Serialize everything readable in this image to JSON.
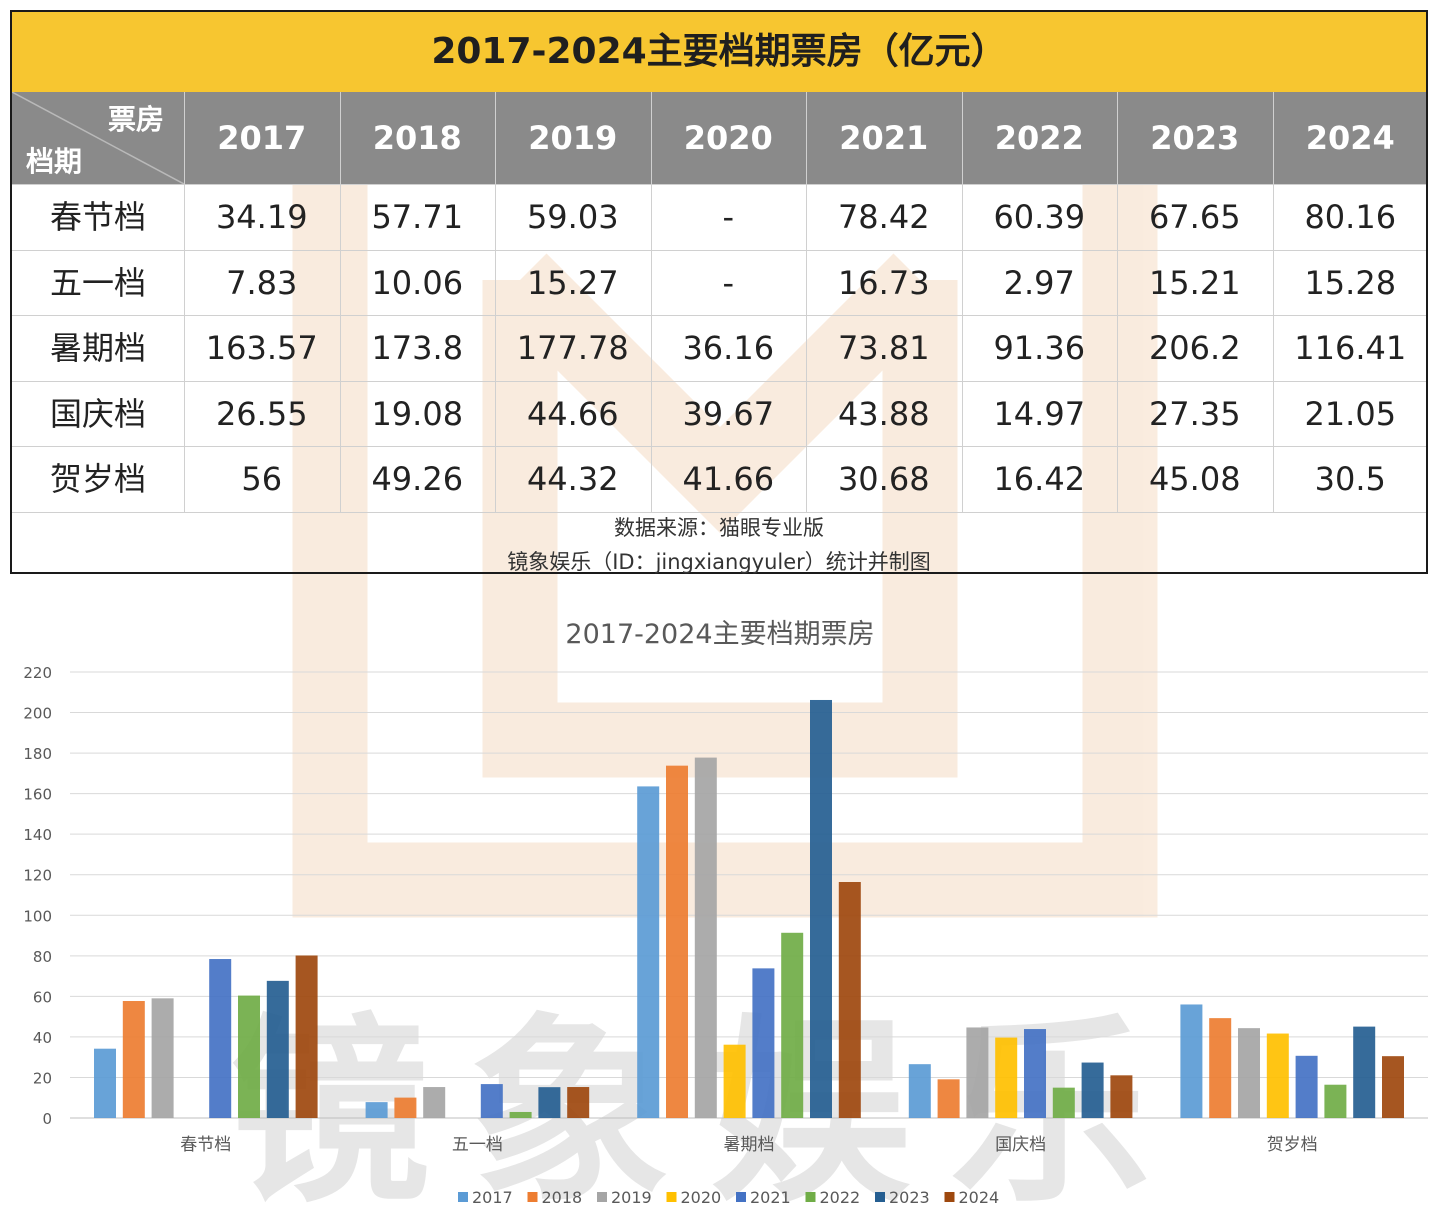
{
  "table": {
    "title": "2017-2024主要档期票房（亿元）",
    "corner_top": "票房",
    "corner_bottom": "档期",
    "years": [
      "2017",
      "2018",
      "2019",
      "2020",
      "2021",
      "2022",
      "2023",
      "2024"
    ],
    "rows": [
      {
        "label": "春节档",
        "values": [
          "34.19",
          "57.71",
          "59.03",
          "-",
          "78.42",
          "60.39",
          "67.65",
          "80.16"
        ]
      },
      {
        "label": "五一档",
        "values": [
          "7.83",
          "10.06",
          "15.27",
          "-",
          "16.73",
          "2.97",
          "15.21",
          "15.28"
        ]
      },
      {
        "label": "暑期档",
        "values": [
          "163.57",
          "173.8",
          "177.78",
          "36.16",
          "73.81",
          "91.36",
          "206.2",
          "116.41"
        ]
      },
      {
        "label": "国庆档",
        "values": [
          "26.55",
          "19.08",
          "44.66",
          "39.67",
          "43.88",
          "14.97",
          "27.35",
          "21.05"
        ]
      },
      {
        "label": "贺岁档",
        "values": [
          "56",
          "49.26",
          "44.32",
          "41.66",
          "30.68",
          "16.42",
          "45.08",
          "30.5"
        ]
      }
    ],
    "source_line1": "数据来源：猫眼专业版",
    "source_line2": "镜象娱乐（ID：jingxiangyuler）统计并制图"
  },
  "watermark": {
    "text": "镜象娱乐"
  },
  "colors": {
    "title_bg": "#f7c630",
    "header_bg": "#8a8a8a",
    "series": [
      "#5b9bd5",
      "#ed7d31",
      "#a5a5a5",
      "#ffc000",
      "#4472c4",
      "#70ad47",
      "#255e91",
      "#9e480e"
    ]
  },
  "chart_data": {
    "type": "bar",
    "title": "2017-2024主要档期票房",
    "categories": [
      "春节档",
      "五一档",
      "暑期档",
      "国庆档",
      "贺岁档"
    ],
    "ylim": [
      0,
      220
    ],
    "yticks": [
      0,
      20,
      40,
      60,
      80,
      100,
      120,
      140,
      160,
      180,
      200,
      220
    ],
    "grid": true,
    "legend": "bottom",
    "series": [
      {
        "name": "2017",
        "values": [
          34.19,
          7.83,
          163.57,
          26.55,
          56
        ]
      },
      {
        "name": "2018",
        "values": [
          57.71,
          10.06,
          173.8,
          19.08,
          49.26
        ]
      },
      {
        "name": "2019",
        "values": [
          59.03,
          15.27,
          177.78,
          44.66,
          44.32
        ]
      },
      {
        "name": "2020",
        "values": [
          null,
          null,
          36.16,
          39.67,
          41.66
        ]
      },
      {
        "name": "2021",
        "values": [
          78.42,
          16.73,
          73.81,
          43.88,
          30.68
        ]
      },
      {
        "name": "2022",
        "values": [
          60.39,
          2.97,
          91.36,
          14.97,
          16.42
        ]
      },
      {
        "name": "2023",
        "values": [
          67.65,
          15.21,
          206.2,
          27.35,
          45.08
        ]
      },
      {
        "name": "2024",
        "values": [
          80.16,
          15.28,
          116.41,
          21.05,
          30.5
        ]
      }
    ]
  }
}
